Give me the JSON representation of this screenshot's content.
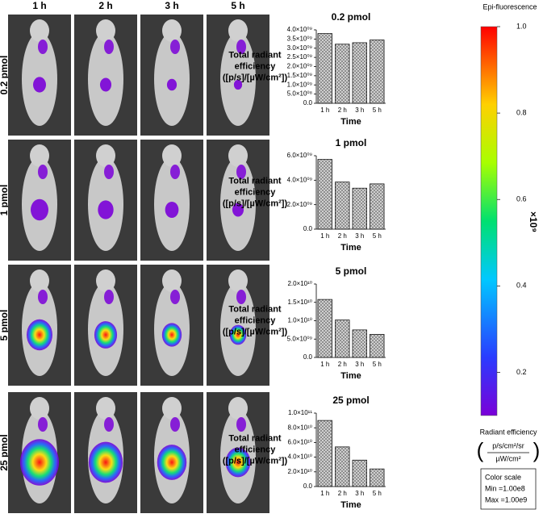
{
  "image_panel": {
    "columns": [
      "1 h",
      "2 h",
      "3 h",
      "5 h"
    ],
    "rows": [
      "0.2 pmol",
      "1 pmol",
      "5 pmol",
      "25 pmol"
    ]
  },
  "chart_data": [
    {
      "type": "bar",
      "title": "0.2 pmol",
      "categories": [
        "1 h",
        "2 h",
        "3 h",
        "5 h"
      ],
      "values": [
        3800000000,
        3220000000,
        3300000000,
        3450000000
      ],
      "xlabel": "Time",
      "ylabel": [
        "Total radiant",
        "efficiency",
        "([p/s]/[µW/cm²])"
      ],
      "ylim": [
        0,
        4000000000
      ],
      "yticks": [
        {
          "value": 0,
          "label": "0.0"
        },
        {
          "value": 500000000,
          "label": "5.0×10⁰⁸"
        },
        {
          "value": 1000000000,
          "label": "1.0×10⁰⁹"
        },
        {
          "value": 1500000000,
          "label": "1.5×10⁰⁹"
        },
        {
          "value": 2000000000,
          "label": "2.0×10⁰⁹"
        },
        {
          "value": 2500000000,
          "label": "2.5×10⁰⁹"
        },
        {
          "value": 3000000000,
          "label": "3.0×10⁰⁹"
        },
        {
          "value": 3500000000,
          "label": "3.5×10⁰⁹"
        },
        {
          "value": 4000000000,
          "label": "4.0×10⁰⁹"
        }
      ]
    },
    {
      "type": "bar",
      "title": "1 pmol",
      "categories": [
        "1 h",
        "2 h",
        "3 h",
        "5 h"
      ],
      "values": [
        5700000000,
        3850000000,
        3350000000,
        3700000000
      ],
      "xlabel": "Time",
      "ylabel": [
        "Total radiant",
        "efficiency",
        "([p/s]/[µW/cm²])"
      ],
      "ylim": [
        0,
        6000000000
      ],
      "yticks": [
        {
          "value": 0,
          "label": "0.0"
        },
        {
          "value": 2000000000,
          "label": "2.0×10⁰⁹"
        },
        {
          "value": 4000000000,
          "label": "4.0×10⁰⁹"
        },
        {
          "value": 6000000000,
          "label": "6.0×10⁰⁹"
        }
      ]
    },
    {
      "type": "bar",
      "title": "5 pmol",
      "categories": [
        "1 h",
        "2 h",
        "3 h",
        "5 h"
      ],
      "values": [
        15800000000,
        10200000000,
        7500000000,
        6300000000
      ],
      "xlabel": "Time",
      "ylabel": [
        "Total radiant",
        "efficiency",
        "([p/s]/[µW/cm²])"
      ],
      "ylim": [
        0,
        20000000000
      ],
      "yticks": [
        {
          "value": 0,
          "label": "0.0"
        },
        {
          "value": 5000000000,
          "label": "5.0×10⁰⁹"
        },
        {
          "value": 10000000000,
          "label": "1.0×10¹⁰"
        },
        {
          "value": 15000000000,
          "label": "1.5×10¹⁰"
        },
        {
          "value": 20000000000,
          "label": "2.0×10¹⁰"
        }
      ]
    },
    {
      "type": "bar",
      "title": "25 pmol",
      "categories": [
        "1 h",
        "2 h",
        "3 h",
        "5 h"
      ],
      "values": [
        90000000000,
        54000000000,
        36000000000,
        24000000000
      ],
      "xlabel": "Time",
      "ylabel": [
        "Total radiant",
        "efficiency",
        "([p/s]/[µW/cm²])"
      ],
      "ylim": [
        0,
        100000000000
      ],
      "yticks": [
        {
          "value": 0,
          "label": "0.0"
        },
        {
          "value": 20000000000,
          "label": "2.0×10¹⁰"
        },
        {
          "value": 40000000000,
          "label": "4.0×10¹⁰"
        },
        {
          "value": 60000000000,
          "label": "6.0×10¹⁰"
        },
        {
          "value": 80000000000,
          "label": "8.0×10¹⁰"
        },
        {
          "value": 100000000000,
          "label": "1.0×10¹¹"
        }
      ]
    }
  ],
  "colorbar": {
    "title": "Epi-fluorescence",
    "lim": [
      0.1,
      1.0
    ],
    "ticks": [
      0.2,
      0.4,
      0.6,
      0.8,
      {
        "value": 1.0,
        "label": "1.0"
      }
    ],
    "multiplier": "×10⁹",
    "label": "Radiant efficiency",
    "unit_numerator": "p/s/cm²/sr",
    "unit_denominator": "µW/cm²",
    "scale_title": "Color scale",
    "min": "Min =1.00e8",
    "max": "Max =1.00e9"
  }
}
